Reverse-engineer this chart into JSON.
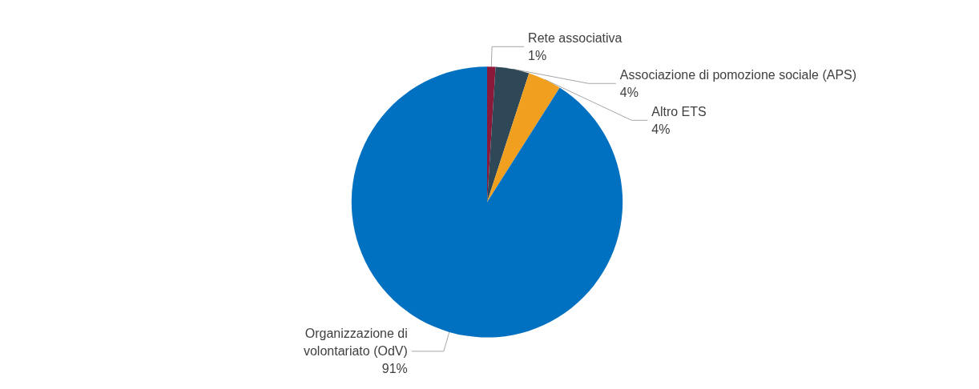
{
  "chart_data": {
    "type": "pie",
    "categories": [
      "Rete associativa",
      "Associazione di pomozione sociale (APS)",
      "Altro ETS",
      "Organizzazione di\nvolontariato (OdV)"
    ],
    "values": [
      1,
      4,
      4,
      91
    ],
    "colors": [
      "#8b1a3a",
      "#2f4858",
      "#f0a01e",
      "#0070c0"
    ],
    "value_labels": [
      "1%",
      "4%",
      "4%",
      "91%"
    ],
    "legend": false
  }
}
